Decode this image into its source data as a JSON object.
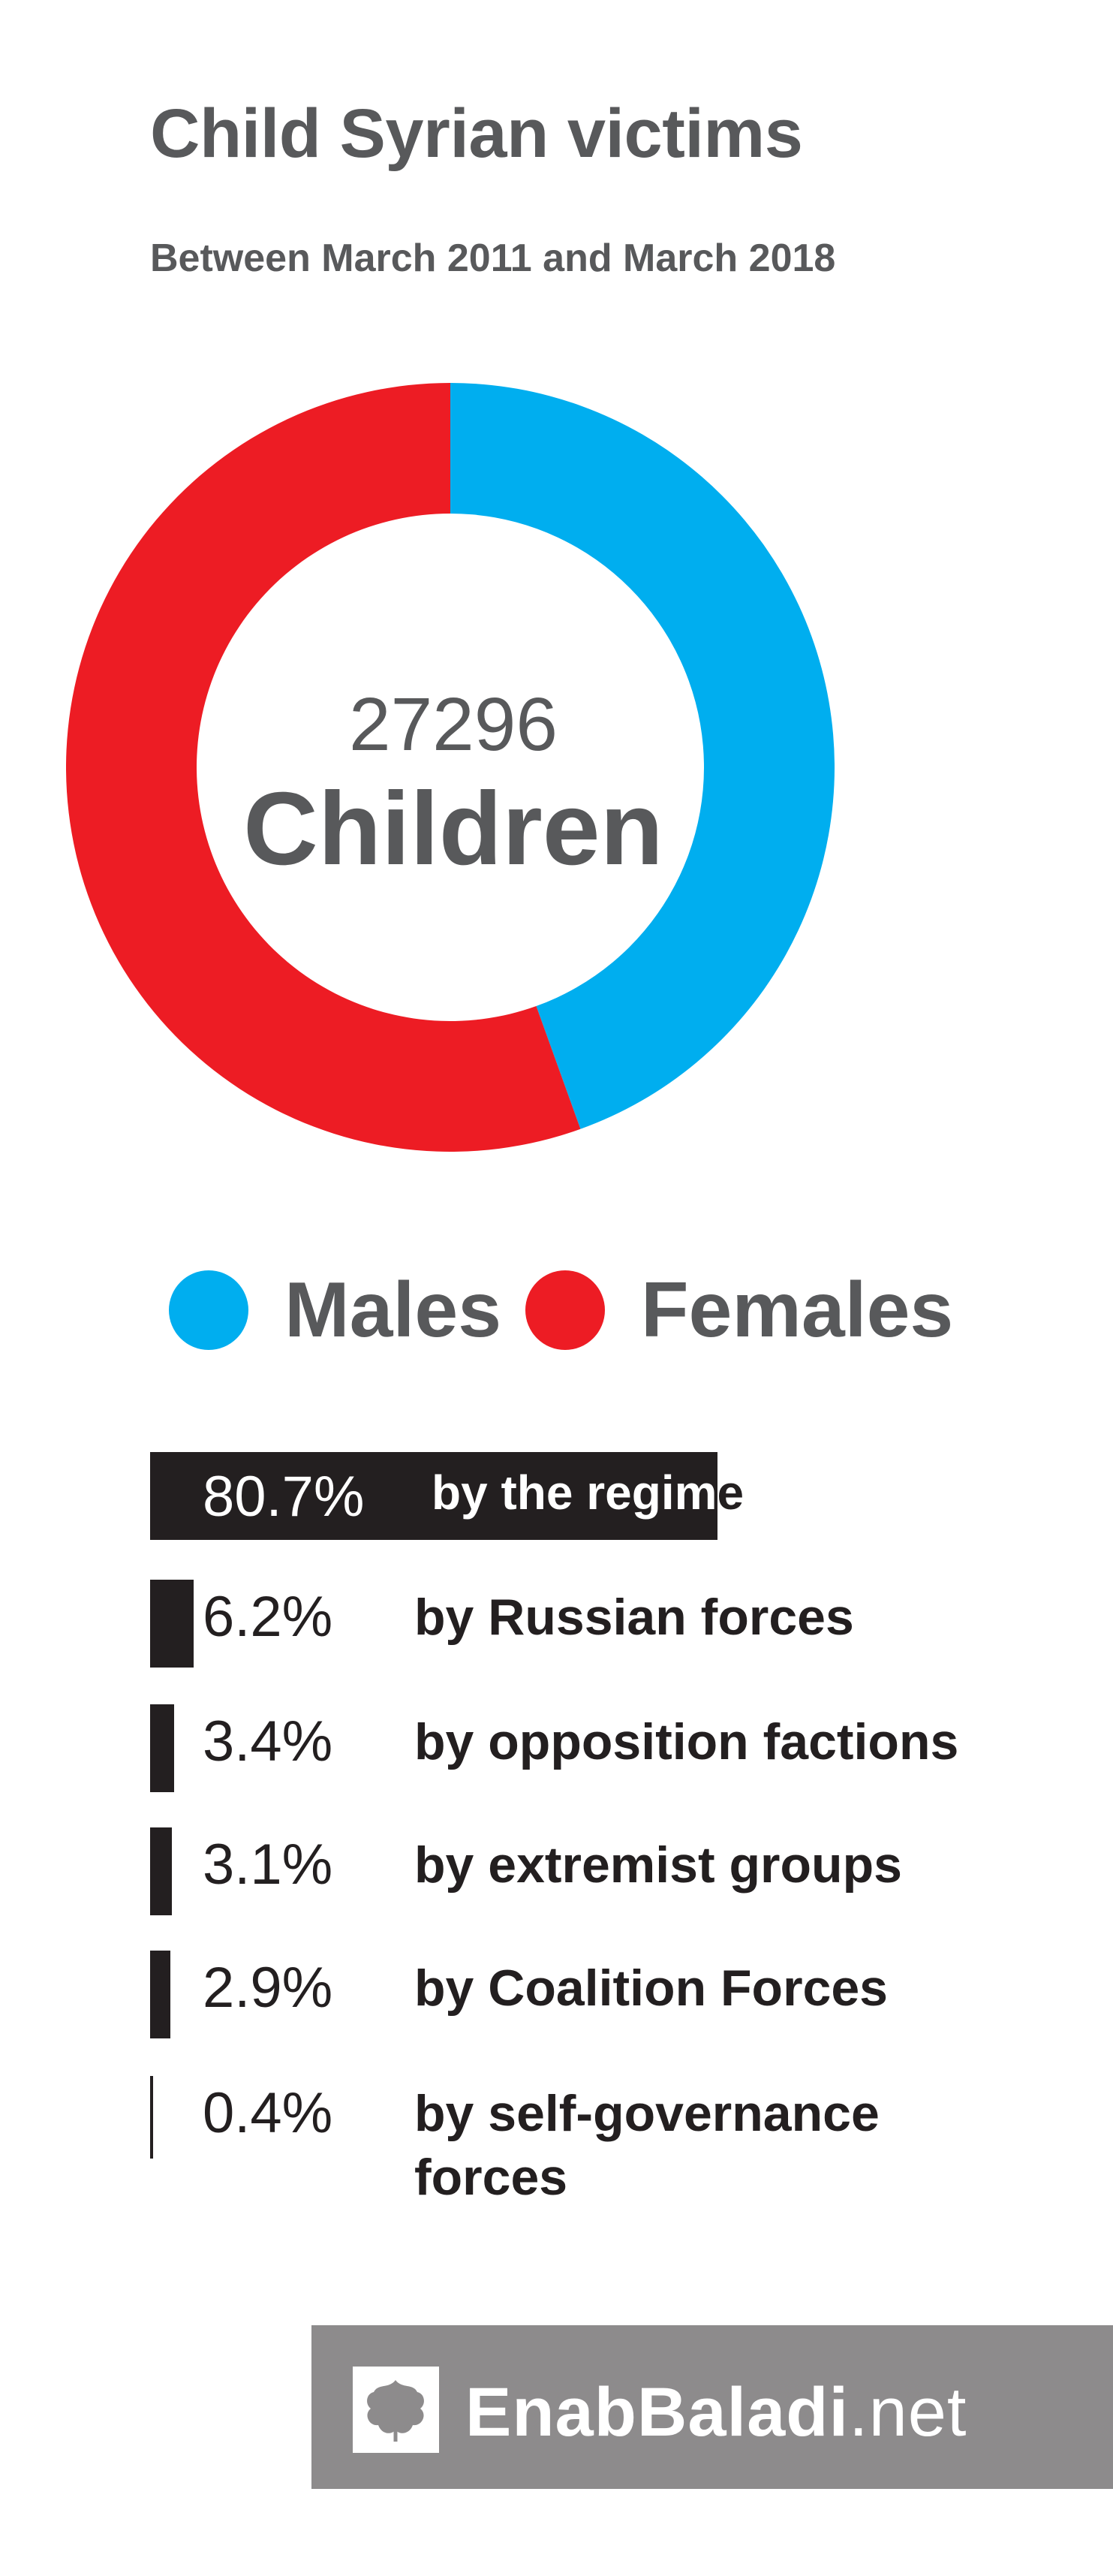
{
  "chart_data": {
    "type": "pie",
    "title": "Child Syrian victims",
    "subtitle": "Between March 2011 and March 2018",
    "center": {
      "number": "27296",
      "label": "Children"
    },
    "series": [
      {
        "name": "Males",
        "value": 44.5,
        "color": "#00aeef"
      },
      {
        "name": "Females",
        "value": 55.5,
        "color": "#ed1c24"
      }
    ]
  },
  "breakdown": [
    {
      "percent": 80.7,
      "percent_label": "80.7%",
      "label": "by the regime"
    },
    {
      "percent": 6.2,
      "percent_label": "6.2%",
      "label": "by Russian forces"
    },
    {
      "percent": 3.4,
      "percent_label": "3.4%",
      "label": "by opposition factions"
    },
    {
      "percent": 3.1,
      "percent_label": "3.1%",
      "label": "by extremist groups"
    },
    {
      "percent": 2.9,
      "percent_label": "2.9%",
      "label": "by Coalition Forces"
    },
    {
      "percent": 0.4,
      "percent_label": "0.4%",
      "label": "by self-governance forces"
    }
  ],
  "footer": {
    "brand_bold": "EnabBaladi",
    "brand_suffix": ".net",
    "logo_icon": "grape-leaf-icon"
  },
  "colors": {
    "text": "#58595b",
    "bar": "#231f20",
    "footer_bg": "#8d8b8c"
  }
}
